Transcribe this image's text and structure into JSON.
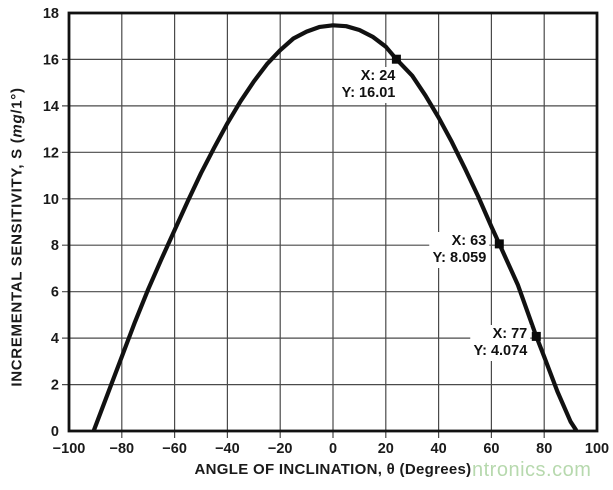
{
  "figure": {
    "background": "#ffffff",
    "watermark": {
      "text": "ntronics.com",
      "color": "#b7d9ae"
    }
  },
  "chart_data": {
    "type": "line",
    "title": "",
    "xlabel": "ANGLE OF INCLINATION, θ (Degrees)",
    "ylabel": "INCREMENTAL SENSITIVITY, S (mg/1°)",
    "ylabel_parts": {
      "pre": "INCREMENTAL SENSITIVITY, S (",
      "italic": "mg",
      "post": "/1°)"
    },
    "xlim": [
      -100,
      100
    ],
    "ylim": [
      0,
      18
    ],
    "xticks": [
      -100,
      -80,
      -60,
      -40,
      -20,
      0,
      20,
      40,
      60,
      80,
      100
    ],
    "yticks": [
      0,
      2,
      4,
      6,
      8,
      10,
      12,
      14,
      16,
      18
    ],
    "grid": true,
    "legend": false,
    "line_color": "#111111",
    "grid_color": "#4a4a4a",
    "axis_color": "#111111",
    "tick_label_color": "#1a1a1a",
    "curve": {
      "x": [
        -90.5,
        -85,
        -80,
        -75,
        -70,
        -65,
        -60,
        -55,
        -50,
        -45,
        -40,
        -35,
        -30,
        -25,
        -20,
        -15,
        -10,
        -5,
        0,
        5,
        10,
        15,
        20,
        24,
        30,
        35,
        40,
        45,
        50,
        55,
        60,
        63,
        70,
        77,
        80,
        85,
        90,
        92
      ],
      "y": [
        0.05,
        1.7,
        3.2,
        4.7,
        6.1,
        7.4,
        8.65,
        9.9,
        11.1,
        12.2,
        13.25,
        14.2,
        15.05,
        15.8,
        16.4,
        16.9,
        17.2,
        17.4,
        17.47,
        17.43,
        17.27,
        16.98,
        16.55,
        16.01,
        15.3,
        14.45,
        13.5,
        12.45,
        11.3,
        10.1,
        8.8,
        8.059,
        6.3,
        4.074,
        3.2,
        1.7,
        0.4,
        0.05
      ]
    },
    "annotated_points": [
      {
        "x": 24,
        "y": 16.01,
        "label_lines": [
          "X: 24",
          "Y: 16.01"
        ]
      },
      {
        "x": 63,
        "y": 8.059,
        "label_lines": [
          "X: 63",
          "Y: 8.059"
        ]
      },
      {
        "x": 77,
        "y": 4.074,
        "label_lines": [
          "X: 77",
          "Y: 4.074"
        ]
      }
    ]
  }
}
